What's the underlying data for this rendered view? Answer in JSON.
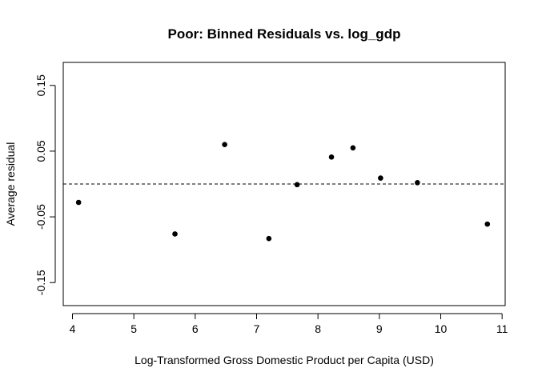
{
  "chart_data": {
    "type": "scatter",
    "title": "Poor: Binned Residuals vs. log_gdp",
    "xlabel": "Log-Transformed Gross Domestic Product per Capita (USD)",
    "ylabel": "Average residual",
    "xlim": [
      3.85,
      11.05
    ],
    "ylim": [
      -0.185,
      0.185
    ],
    "xticks": [
      4,
      5,
      6,
      7,
      8,
      9,
      10,
      11
    ],
    "yticks": [
      -0.15,
      -0.05,
      0.05,
      0.15
    ],
    "xtick_labels": [
      "4",
      "5",
      "6",
      "7",
      "8",
      "9",
      "10",
      "11"
    ],
    "ytick_labels": [
      "-0.15",
      "-0.05",
      "0.05",
      "0.15"
    ],
    "reference_line": {
      "y": 0,
      "style": "dashed"
    },
    "grid": false,
    "point_color": "#000000",
    "points": [
      {
        "x": 4.1,
        "y": -0.028
      },
      {
        "x": 5.67,
        "y": -0.076
      },
      {
        "x": 6.48,
        "y": 0.06
      },
      {
        "x": 7.2,
        "y": -0.083
      },
      {
        "x": 7.66,
        "y": -0.001
      },
      {
        "x": 8.22,
        "y": 0.041
      },
      {
        "x": 8.57,
        "y": 0.055
      },
      {
        "x": 9.02,
        "y": 0.009
      },
      {
        "x": 9.62,
        "y": 0.002
      },
      {
        "x": 10.76,
        "y": -0.061
      }
    ]
  }
}
